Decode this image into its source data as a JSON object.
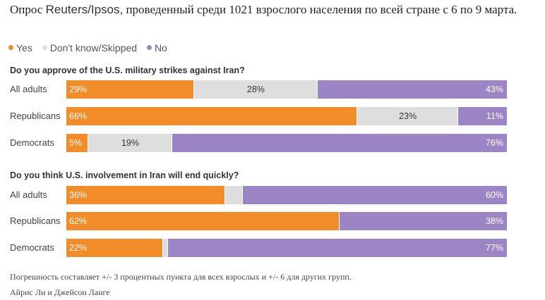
{
  "title": {
    "lead": "Опрос",
    "source": "Reuters/Ipsos,",
    "rest": "проведенный среди 1021 взрослого населения по всей стране с 6 по 9 марта."
  },
  "chart_data": [
    {
      "type": "bar",
      "stacked": true,
      "orientation": "horizontal",
      "title": "Do you approve of the U.S. military strikes against Iran?",
      "categories": [
        "All adults",
        "Republicans",
        "Democrats"
      ],
      "series": [
        {
          "name": "Yes",
          "values": [
            29,
            66,
            5
          ]
        },
        {
          "name": "Don't know/Skipped",
          "values": [
            28,
            23,
            19
          ]
        },
        {
          "name": "No",
          "values": [
            43,
            11,
            76
          ]
        }
      ],
      "labels": [
        [
          "29%",
          "28%",
          "43%"
        ],
        [
          "66%",
          "23%",
          "11%"
        ],
        [
          "5%",
          "19%",
          "76%"
        ]
      ],
      "xlim": [
        0,
        100
      ],
      "legend": "top-left"
    },
    {
      "type": "bar",
      "stacked": true,
      "orientation": "horizontal",
      "title": "Do you think U.S. involvement in Iran will end quickly?",
      "categories": [
        "All adults",
        "Republicans",
        "Democrats"
      ],
      "series": [
        {
          "name": "Yes",
          "values": [
            36,
            62,
            22
          ]
        },
        {
          "name": "Don't know/Skipped",
          "values": [
            4,
            0,
            1
          ]
        },
        {
          "name": "No",
          "values": [
            60,
            38,
            77
          ]
        }
      ],
      "labels": [
        [
          "36%",
          "",
          "60%"
        ],
        [
          "62%",
          "",
          "38%"
        ],
        [
          "22%",
          "",
          "77%"
        ]
      ],
      "xlim": [
        0,
        100
      ],
      "legend": "top-left"
    }
  ],
  "legend": [
    {
      "label": "Yes",
      "color": "#f28c28"
    },
    {
      "label": "Don't know/Skipped",
      "color": "#dedede"
    },
    {
      "label": "No",
      "color": "#9b85c4"
    }
  ],
  "footer": {
    "margin_note": "Погрешность составляет +/- 3 процентных пункта для всех взрослых и +/- 6 для других групп.",
    "authors": "Айрис Ли и Джейсон Ланге"
  }
}
